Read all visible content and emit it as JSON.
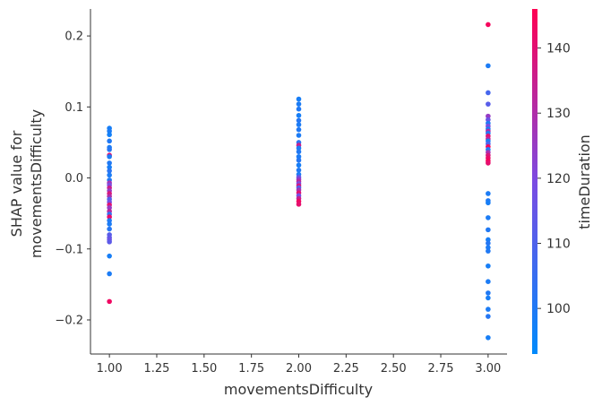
{
  "chart_data": {
    "type": "scatter",
    "title": "",
    "xlabel": "movementsDifficulty",
    "ylabel_lines": [
      "SHAP value for",
      "movementsDifficulty"
    ],
    "xlim": [
      0.9,
      3.1
    ],
    "ylim": [
      -0.248,
      0.238
    ],
    "x_ticks": [
      1.0,
      1.25,
      1.5,
      1.75,
      2.0,
      2.25,
      2.5,
      2.75,
      3.0
    ],
    "x_tick_labels": [
      "1.00",
      "1.25",
      "1.50",
      "1.75",
      "2.00",
      "2.25",
      "2.50",
      "2.75",
      "3.00"
    ],
    "y_ticks": [
      0.2,
      0.1,
      0.0,
      -0.1,
      -0.2
    ],
    "y_tick_labels": [
      "0.2",
      "0.1",
      "0.0",
      "−0.1",
      "−0.2"
    ],
    "grid": false,
    "colorbar": {
      "label": "timeDuration",
      "range": [
        93,
        146
      ],
      "ticks": [
        140,
        130,
        120,
        110,
        100
      ],
      "tick_labels": [
        "140",
        "130",
        "120",
        "110",
        "100"
      ],
      "colors": [
        "#008afb",
        "#7b4be2",
        "#ff0052"
      ]
    },
    "points": [
      {
        "x": 1,
        "y": 0.07,
        "c": 98
      },
      {
        "x": 1,
        "y": 0.066,
        "c": 99
      },
      {
        "x": 1,
        "y": 0.061,
        "c": 97
      },
      {
        "x": 1,
        "y": 0.052,
        "c": 100
      },
      {
        "x": 1,
        "y": 0.043,
        "c": 99
      },
      {
        "x": 1,
        "y": 0.04,
        "c": 101
      },
      {
        "x": 1,
        "y": 0.032,
        "c": 140
      },
      {
        "x": 1,
        "y": 0.03,
        "c": 99
      },
      {
        "x": 1,
        "y": 0.021,
        "c": 100
      },
      {
        "x": 1,
        "y": 0.015,
        "c": 98
      },
      {
        "x": 1,
        "y": 0.01,
        "c": 102
      },
      {
        "x": 1,
        "y": 0.004,
        "c": 99
      },
      {
        "x": 1,
        "y": -0.003,
        "c": 100
      },
      {
        "x": 1,
        "y": -0.007,
        "c": 128
      },
      {
        "x": 1,
        "y": -0.01,
        "c": 120
      },
      {
        "x": 1,
        "y": -0.014,
        "c": 135
      },
      {
        "x": 1,
        "y": -0.018,
        "c": 125
      },
      {
        "x": 1,
        "y": -0.022,
        "c": 138
      },
      {
        "x": 1,
        "y": -0.026,
        "c": 130
      },
      {
        "x": 1,
        "y": -0.03,
        "c": 110
      },
      {
        "x": 1,
        "y": -0.034,
        "c": 118
      },
      {
        "x": 1,
        "y": -0.038,
        "c": 140
      },
      {
        "x": 1,
        "y": -0.042,
        "c": 125
      },
      {
        "x": 1,
        "y": -0.047,
        "c": 132
      },
      {
        "x": 1,
        "y": -0.051,
        "c": 104
      },
      {
        "x": 1,
        "y": -0.055,
        "c": 142
      },
      {
        "x": 1,
        "y": -0.06,
        "c": 100
      },
      {
        "x": 1,
        "y": -0.065,
        "c": 99
      },
      {
        "x": 1,
        "y": -0.072,
        "c": 101
      },
      {
        "x": 1,
        "y": -0.08,
        "c": 112
      },
      {
        "x": 1,
        "y": -0.084,
        "c": 114
      },
      {
        "x": 1,
        "y": -0.087,
        "c": 116
      },
      {
        "x": 1,
        "y": -0.09,
        "c": 113
      },
      {
        "x": 1,
        "y": -0.11,
        "c": 98
      },
      {
        "x": 1,
        "y": -0.135,
        "c": 99
      },
      {
        "x": 1,
        "y": -0.174,
        "c": 143
      },
      {
        "x": 2,
        "y": 0.111,
        "c": 98
      },
      {
        "x": 2,
        "y": 0.104,
        "c": 99
      },
      {
        "x": 2,
        "y": 0.097,
        "c": 100
      },
      {
        "x": 2,
        "y": 0.088,
        "c": 98
      },
      {
        "x": 2,
        "y": 0.081,
        "c": 101
      },
      {
        "x": 2,
        "y": 0.075,
        "c": 99
      },
      {
        "x": 2,
        "y": 0.068,
        "c": 100
      },
      {
        "x": 2,
        "y": 0.06,
        "c": 99
      },
      {
        "x": 2,
        "y": 0.05,
        "c": 102
      },
      {
        "x": 2,
        "y": 0.046,
        "c": 135
      },
      {
        "x": 2,
        "y": 0.042,
        "c": 99
      },
      {
        "x": 2,
        "y": 0.037,
        "c": 100
      },
      {
        "x": 2,
        "y": 0.03,
        "c": 99
      },
      {
        "x": 2,
        "y": 0.025,
        "c": 101
      },
      {
        "x": 2,
        "y": 0.018,
        "c": 98
      },
      {
        "x": 2,
        "y": 0.011,
        "c": 100
      },
      {
        "x": 2,
        "y": 0.005,
        "c": 99
      },
      {
        "x": 2,
        "y": 0.001,
        "c": 115
      },
      {
        "x": 2,
        "y": -0.002,
        "c": 125
      },
      {
        "x": 2,
        "y": -0.005,
        "c": 132
      },
      {
        "x": 2,
        "y": -0.008,
        "c": 120
      },
      {
        "x": 2,
        "y": -0.011,
        "c": 138
      },
      {
        "x": 2,
        "y": -0.014,
        "c": 110
      },
      {
        "x": 2,
        "y": -0.017,
        "c": 128
      },
      {
        "x": 2,
        "y": -0.021,
        "c": 140
      },
      {
        "x": 2,
        "y": -0.025,
        "c": 118
      },
      {
        "x": 2,
        "y": -0.029,
        "c": 135
      },
      {
        "x": 2,
        "y": -0.033,
        "c": 143
      },
      {
        "x": 2,
        "y": -0.037,
        "c": 141
      },
      {
        "x": 3,
        "y": 0.216,
        "c": 144
      },
      {
        "x": 3,
        "y": 0.158,
        "c": 99
      },
      {
        "x": 3,
        "y": 0.12,
        "c": 108
      },
      {
        "x": 3,
        "y": 0.104,
        "c": 112
      },
      {
        "x": 3,
        "y": 0.087,
        "c": 125
      },
      {
        "x": 3,
        "y": 0.082,
        "c": 116
      },
      {
        "x": 3,
        "y": 0.077,
        "c": 100
      },
      {
        "x": 3,
        "y": 0.073,
        "c": 120
      },
      {
        "x": 3,
        "y": 0.069,
        "c": 99
      },
      {
        "x": 3,
        "y": 0.066,
        "c": 130
      },
      {
        "x": 3,
        "y": 0.063,
        "c": 101
      },
      {
        "x": 3,
        "y": 0.059,
        "c": 140
      },
      {
        "x": 3,
        "y": 0.055,
        "c": 133
      },
      {
        "x": 3,
        "y": 0.052,
        "c": 99
      },
      {
        "x": 3,
        "y": 0.048,
        "c": 110
      },
      {
        "x": 3,
        "y": 0.044,
        "c": 143
      },
      {
        "x": 3,
        "y": 0.04,
        "c": 100
      },
      {
        "x": 3,
        "y": 0.036,
        "c": 128
      },
      {
        "x": 3,
        "y": 0.032,
        "c": 138
      },
      {
        "x": 3,
        "y": 0.028,
        "c": 142
      },
      {
        "x": 3,
        "y": 0.024,
        "c": 144
      },
      {
        "x": 3,
        "y": 0.021,
        "c": 141
      },
      {
        "x": 3,
        "y": -0.022,
        "c": 99
      },
      {
        "x": 3,
        "y": -0.032,
        "c": 100
      },
      {
        "x": 3,
        "y": -0.035,
        "c": 98
      },
      {
        "x": 3,
        "y": -0.056,
        "c": 99
      },
      {
        "x": 3,
        "y": -0.073,
        "c": 100
      },
      {
        "x": 3,
        "y": -0.087,
        "c": 98
      },
      {
        "x": 3,
        "y": -0.092,
        "c": 101
      },
      {
        "x": 3,
        "y": -0.098,
        "c": 99
      },
      {
        "x": 3,
        "y": -0.103,
        "c": 100
      },
      {
        "x": 3,
        "y": -0.124,
        "c": 98
      },
      {
        "x": 3,
        "y": -0.146,
        "c": 99
      },
      {
        "x": 3,
        "y": -0.162,
        "c": 100
      },
      {
        "x": 3,
        "y": -0.169,
        "c": 98
      },
      {
        "x": 3,
        "y": -0.185,
        "c": 99
      },
      {
        "x": 3,
        "y": -0.195,
        "c": 101
      },
      {
        "x": 3,
        "y": -0.225,
        "c": 98
      }
    ]
  }
}
